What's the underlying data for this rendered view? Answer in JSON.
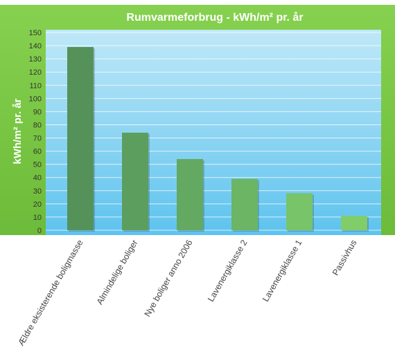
{
  "chart_data": {
    "type": "bar",
    "title": "Rumvarmeforbrug - kWh/m² pr. år",
    "xlabel": "",
    "ylabel": "kWh/m² pr. år",
    "categories": [
      "Ældre eksisterende boligmasse",
      "Almindelige boliger",
      "Nye boliger anno 2006",
      "Lavenergiklasse 2",
      "Lavenergiklasse 1",
      "Passivhus"
    ],
    "values": [
      139,
      74,
      54,
      39,
      28,
      11
    ],
    "ylim": [
      0,
      150
    ],
    "yticks": [
      0,
      10,
      20,
      30,
      40,
      50,
      60,
      70,
      80,
      90,
      100,
      110,
      120,
      130,
      140,
      150
    ],
    "grid": true,
    "legend": "none",
    "colors": {
      "frame": "#72c33e",
      "plot_top": "#bfe8f8",
      "plot_bottom": "#5ec3ee",
      "bars": [
        "#55925a",
        "#5c9e5e",
        "#63a962",
        "#6bb565",
        "#78c468",
        "#80cd6a"
      ]
    }
  }
}
